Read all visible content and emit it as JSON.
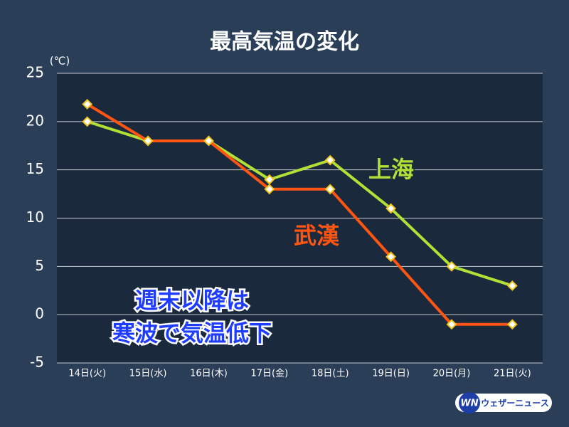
{
  "chart_data": {
    "type": "line",
    "title": "最高気温の変化",
    "unit_label": "(℃)",
    "categories": [
      "14日(火)",
      "15日(水)",
      "16日(木)",
      "17日(金)",
      "18日(土)",
      "19日(日)",
      "20日(月)",
      "21日(火)"
    ],
    "series": [
      {
        "name": "上海",
        "color": "#b3e036",
        "values": [
          20,
          18,
          18,
          14,
          16,
          11,
          5,
          3
        ]
      },
      {
        "name": "武漢",
        "color": "#ff5512",
        "values": [
          21.8,
          18,
          18,
          13,
          13,
          6,
          -1,
          -1
        ]
      }
    ],
    "ylim": [
      -5,
      25
    ],
    "yticks": [
      -5,
      0,
      5,
      10,
      15,
      20,
      25
    ],
    "grid": true,
    "annotation": [
      "週末以降は",
      "寒波で気温低下"
    ],
    "brand": "ウェザーニュース",
    "brand_logo": "WN"
  }
}
